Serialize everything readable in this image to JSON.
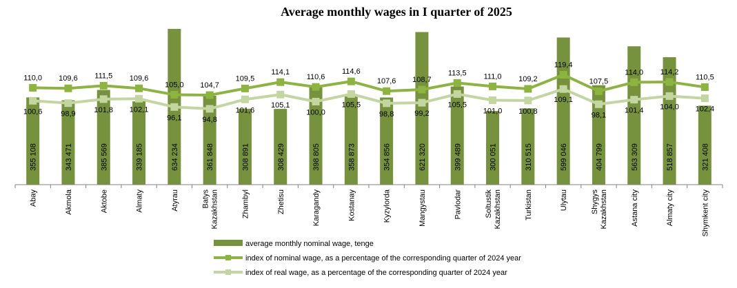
{
  "chart_data": {
    "type": "bar",
    "title": "Average monthly wages in I quarter of 2025",
    "categories": [
      [
        "Abay"
      ],
      [
        "Akmola"
      ],
      [
        "Aktobe"
      ],
      [
        "Almaty"
      ],
      [
        "Atyrau"
      ],
      [
        "Batys",
        "Kazakhstan"
      ],
      [
        "Zhambyl"
      ],
      [
        "Zhetisu"
      ],
      [
        "Karagandy"
      ],
      [
        "Kostanay"
      ],
      [
        "Kyzylorda"
      ],
      [
        "Mangystau"
      ],
      [
        "Pavlodar"
      ],
      [
        "Soltustik",
        "Kazakhstan"
      ],
      [
        "Turkistan"
      ],
      [
        "Ulytau"
      ],
      [
        "Shygys",
        "Kazakhstan"
      ],
      [
        "Astana city"
      ],
      [
        "Almaty city"
      ],
      [
        "Shymkent city"
      ]
    ],
    "series": [
      {
        "name": "average monthly nominal wage, tenge",
        "kind": "bar",
        "color": "#76923c",
        "values": [
          355108,
          343471,
          385569,
          339185,
          634234,
          361848,
          308891,
          308429,
          398805,
          358873,
          354856,
          621320,
          399489,
          300051,
          310515,
          599046,
          404799,
          563309,
          518857,
          321408
        ],
        "labels": [
          "355 108",
          "343 471",
          "385 569",
          "339 185",
          "634 234",
          "361 848",
          "308 891",
          "308 429",
          "398 805",
          "358 873",
          "354 856",
          "621 320",
          "399 489",
          "300 051",
          "310 515",
          "599 046",
          "404 799",
          "563 309",
          "518 857",
          "321 408"
        ]
      },
      {
        "name": "index of nominal wage,  as a percentage of the corresponding quarter of 2024 year",
        "kind": "line",
        "color": "#8db43e",
        "values": [
          110.0,
          109.6,
          111.5,
          109.6,
          105.0,
          104.7,
          109.5,
          114.1,
          110.6,
          114.6,
          107.6,
          108.7,
          113.5,
          111.0,
          109.2,
          119.4,
          107.5,
          114.0,
          114.2,
          110.5
        ],
        "labels": [
          "110,0",
          "109,6",
          "111,5",
          "109,6",
          "105,0",
          "104,7",
          "109,5",
          "114,1",
          "110,6",
          "114,6",
          "107,6",
          "108,7",
          "113,5",
          "111,0",
          "109,2",
          "119,4",
          "107,5",
          "114,0",
          "114,2",
          "110,5"
        ]
      },
      {
        "name": "index of real wage, as a percentage of the corresponding quarter of 2024 year",
        "kind": "line",
        "color": "#c3d6a0",
        "values": [
          100.6,
          98.9,
          101.8,
          102.1,
          96.1,
          94.8,
          101.6,
          105.1,
          100.0,
          105.5,
          98.8,
          99.2,
          105.5,
          101.0,
          100.8,
          109.1,
          98.1,
          101.4,
          104.0,
          102.4
        ],
        "labels": [
          "100,6",
          "98,9",
          "101,8",
          "102,1",
          "96,1",
          "94,8",
          "101,6",
          "105,1",
          "100,0",
          "105,5",
          "98,8",
          "99,2",
          "105,5",
          "101,0",
          "100,8",
          "109,1",
          "98,1",
          "101,4",
          "104,0",
          "102,4"
        ]
      }
    ],
    "legend_position": "bottom",
    "grid": false
  }
}
